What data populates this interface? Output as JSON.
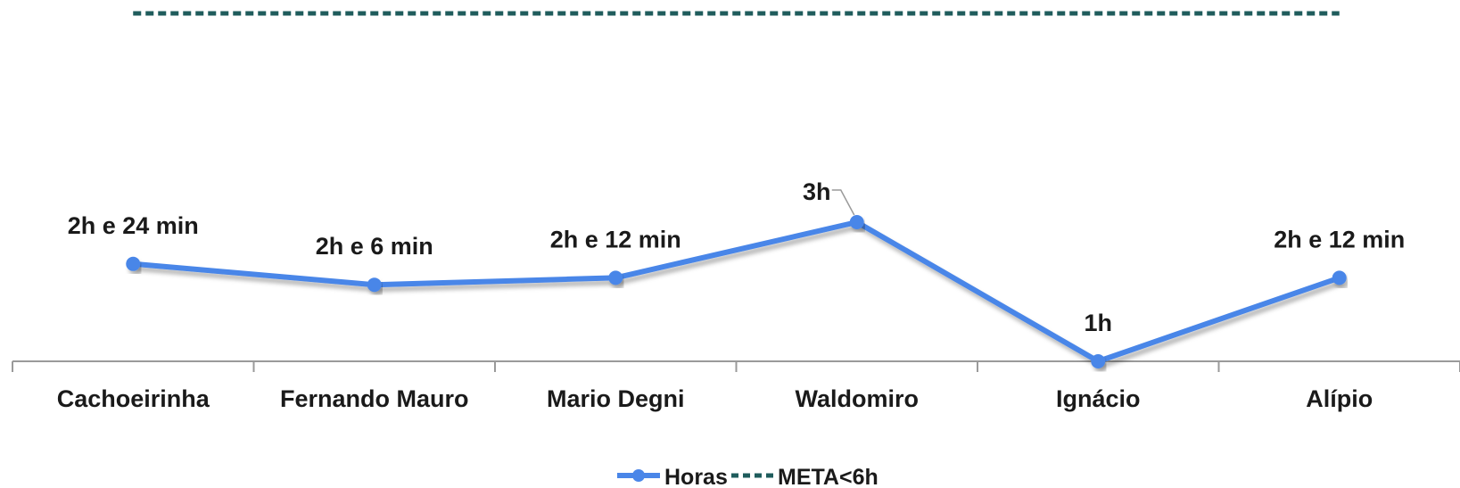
{
  "chart_data": {
    "type": "line",
    "categories": [
      "Cachoeirinha",
      "Fernando Mauro",
      "Mario Degni",
      "Waldomiro",
      "Ignácio",
      "Alípio"
    ],
    "series": [
      {
        "name": "Horas",
        "values": [
          2.4,
          2.1,
          2.2,
          3.0,
          1.0,
          2.2
        ],
        "labels": [
          "2h e 24 min",
          "2h e 6 min",
          "2h e 12 min",
          "3h",
          "1h",
          "2h e 12 min"
        ],
        "color": "#4A86E8"
      },
      {
        "name": "META<6h",
        "values": [
          6,
          6,
          6,
          6,
          6,
          6
        ],
        "color": "#1F5C5C",
        "style": "dashed"
      }
    ],
    "ylim": [
      1,
      6
    ],
    "grid": false,
    "legend_position": "bottom"
  }
}
